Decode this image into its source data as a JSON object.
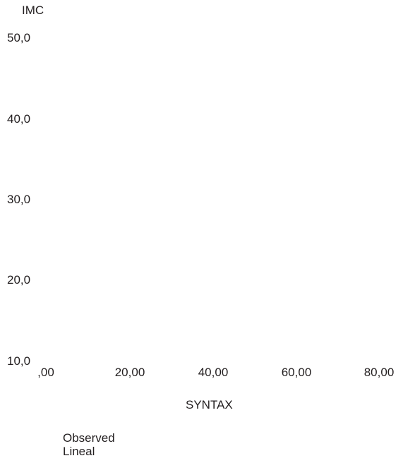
{
  "chart_data": {
    "type": "scatter",
    "title": "",
    "xlabel": "SYNTAX",
    "ylabel": "IMC",
    "xlim": [
      0,
      80
    ],
    "ylim": [
      10,
      50
    ],
    "x_tick_labels": [
      ",00",
      "20,00",
      "40,00",
      "60,00",
      "80,00"
    ],
    "y_tick_labels": [
      "50,0",
      "40,0",
      "30,0",
      "20,0",
      "10,0"
    ],
    "series": [
      {
        "name": "Observed",
        "points": []
      },
      {
        "name": "Lineal",
        "points": []
      }
    ],
    "legend_position": "bottom-left",
    "grid": false
  }
}
